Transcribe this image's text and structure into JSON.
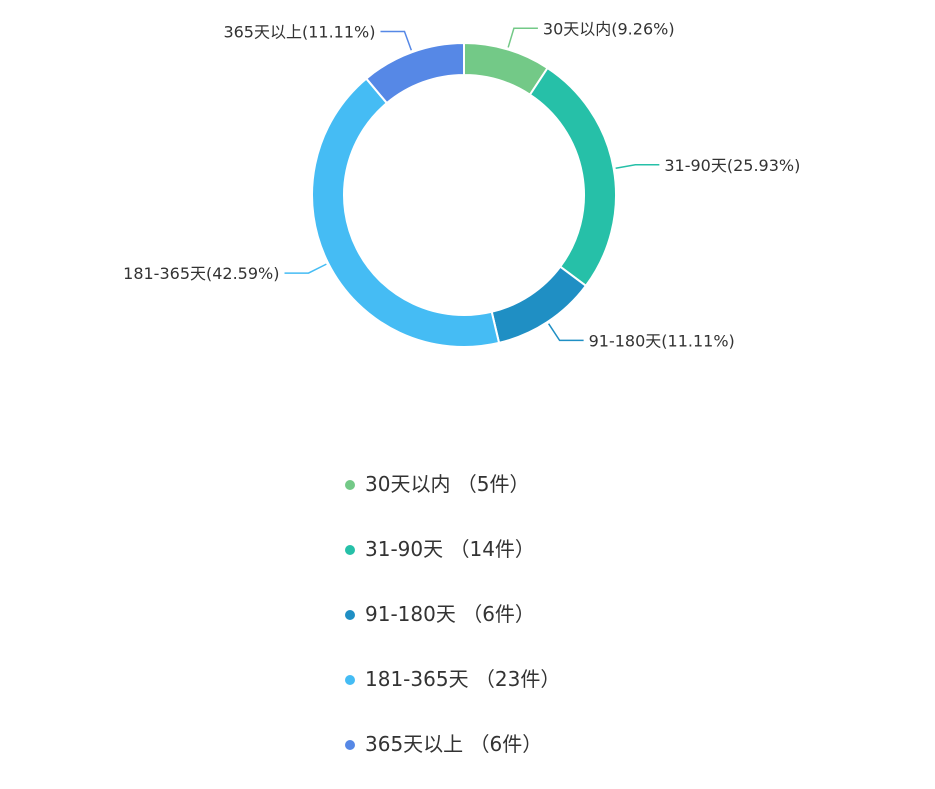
{
  "chart_data": {
    "type": "pie",
    "variant": "donut",
    "title": "",
    "slices": [
      {
        "label": "30天以内",
        "value": 5,
        "percent_label": "30天以内(9.26%)",
        "color": "#73c987"
      },
      {
        "label": "31-90天",
        "value": 14,
        "percent_label": "31-90天(25.93%)",
        "color": "#26c0a8"
      },
      {
        "label": "91-180天",
        "value": 6,
        "percent_label": "91-180天(11.11%)",
        "color": "#1f8fc4"
      },
      {
        "label": "181-365天",
        "value": 23,
        "percent_label": "181-365天(42.59%)",
        "color": "#45bcf4"
      },
      {
        "label": "365天以上",
        "value": 6,
        "percent_label": "365天以上(11.11%)",
        "color": "#5688e6"
      }
    ],
    "legend_position": "bottom",
    "legend": [
      {
        "text": "30天以内 （5件）",
        "color": "#73c987"
      },
      {
        "text": "31-90天 （14件）",
        "color": "#26c0a8"
      },
      {
        "text": "91-180天 （6件）",
        "color": "#1f8fc4"
      },
      {
        "text": "181-365天 （23件）",
        "color": "#45bcf4"
      },
      {
        "text": "365天以上 （6件）",
        "color": "#5688e6"
      }
    ]
  }
}
